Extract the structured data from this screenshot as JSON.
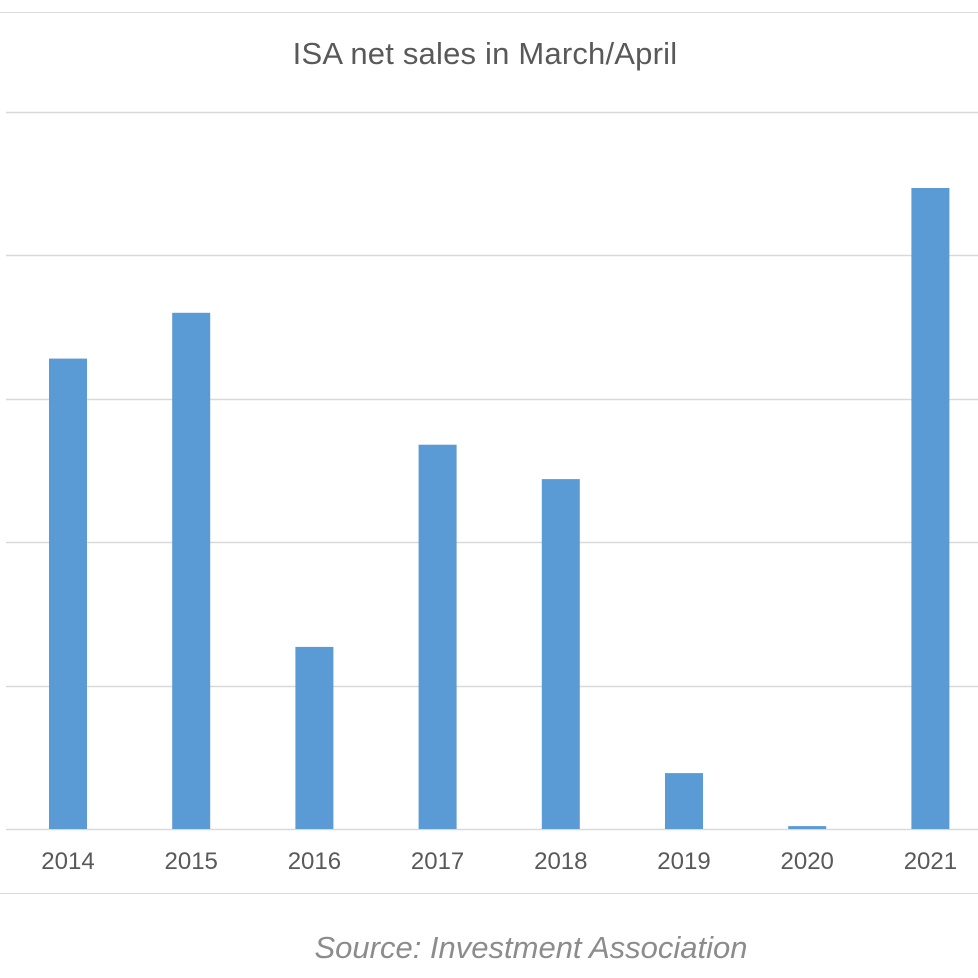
{
  "title": "ISA net sales in March/April",
  "source": "Source: Investment Association",
  "colors": {
    "bar": "#5b9bd5",
    "gridline": "#d9d9d9",
    "text": "#595959",
    "source_text": "#8c8c8c"
  },
  "chart_data": {
    "type": "bar",
    "title": "ISA net sales in March/April",
    "xlabel": "",
    "ylabel": "",
    "categories": [
      "2014",
      "2015",
      "2016",
      "2017",
      "2018",
      "2019",
      "2020",
      "2021"
    ],
    "values": [
      3.28,
      3.6,
      1.27,
      2.68,
      2.44,
      0.39,
      0.02,
      4.47
    ],
    "ylim": [
      0,
      5
    ],
    "y_tick_labels_shown": false,
    "grid": true,
    "legend": "none"
  }
}
